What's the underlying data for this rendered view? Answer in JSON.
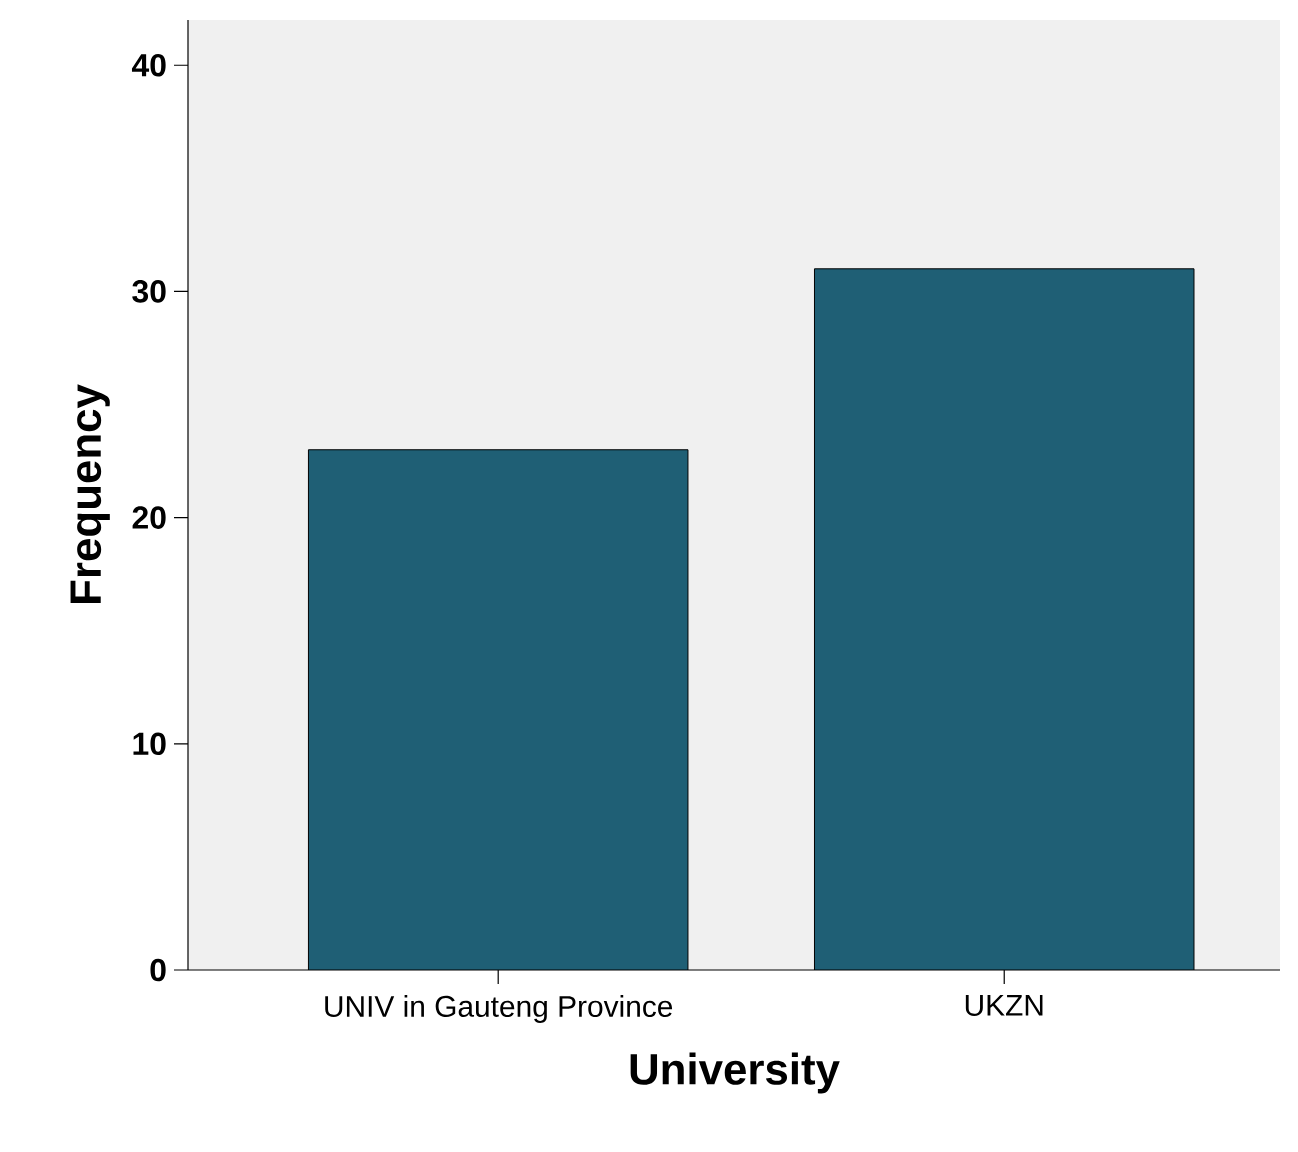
{
  "chart_data": {
    "type": "bar",
    "xlabel": "University",
    "ylabel": "Frequency",
    "categories": [
      "UNIV in Gauteng Province",
      "UKZN"
    ],
    "values": [
      23,
      31
    ],
    "color": "#1f5f75",
    "ylim": [
      0,
      42
    ],
    "yticks": [
      0,
      10,
      20,
      30,
      40
    ],
    "grid": false
  }
}
